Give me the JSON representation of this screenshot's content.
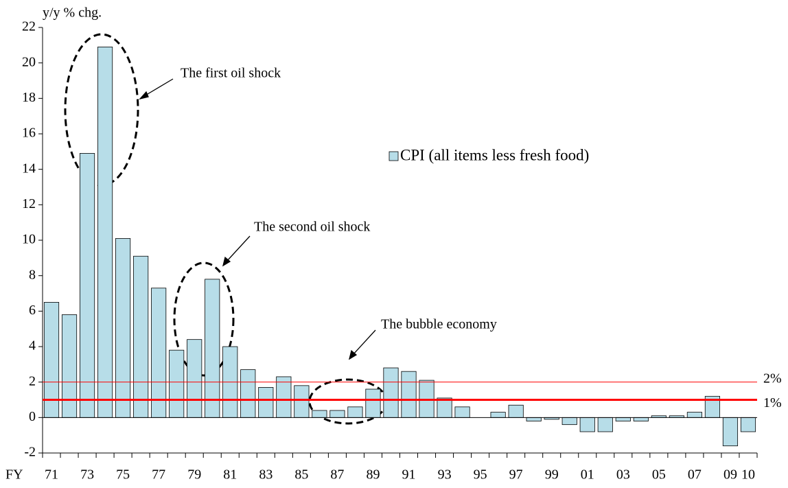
{
  "chart_data": {
    "type": "bar",
    "y_label": "y/y % chg.",
    "x_label": "FY",
    "categories": [
      "71",
      null,
      "73",
      null,
      "75",
      null,
      "77",
      null,
      "79",
      null,
      "81",
      null,
      "83",
      null,
      "85",
      null,
      "87",
      null,
      "89",
      null,
      "91",
      null,
      "93",
      null,
      "95",
      null,
      "97",
      null,
      "99",
      null,
      "01",
      null,
      "03",
      null,
      "05",
      null,
      "07",
      null,
      "09",
      "10"
    ],
    "series": [
      {
        "name": "CPI (all items less fresh food)",
        "color": "#b7dde8",
        "values": [
          6.5,
          5.8,
          14.9,
          20.9,
          10.1,
          9.1,
          7.3,
          3.8,
          4.4,
          7.8,
          4.0,
          2.7,
          1.7,
          2.3,
          1.8,
          0.4,
          0.4,
          0.6,
          1.6,
          2.8,
          2.6,
          2.1,
          1.1,
          0.6,
          0,
          0.3,
          0.7,
          -0.2,
          -0.1,
          -0.4,
          -0.8,
          -0.8,
          -0.2,
          -0.2,
          0.1,
          0.1,
          0.3,
          1.2,
          -1.6,
          -0.8
        ]
      }
    ],
    "ylim": [
      -2,
      22
    ],
    "yticks": [
      -2,
      0,
      2,
      4,
      6,
      8,
      10,
      12,
      14,
      16,
      18,
      20,
      22
    ],
    "reference_lines": [
      {
        "value": 2,
        "label": "2%",
        "color": "#ff0000",
        "width": 1
      },
      {
        "value": 1,
        "label": "1%",
        "color": "#ff0000",
        "width": 3
      }
    ],
    "annotations": [
      "The first oil shock",
      "The second oil shock",
      "The bubble economy"
    ]
  }
}
